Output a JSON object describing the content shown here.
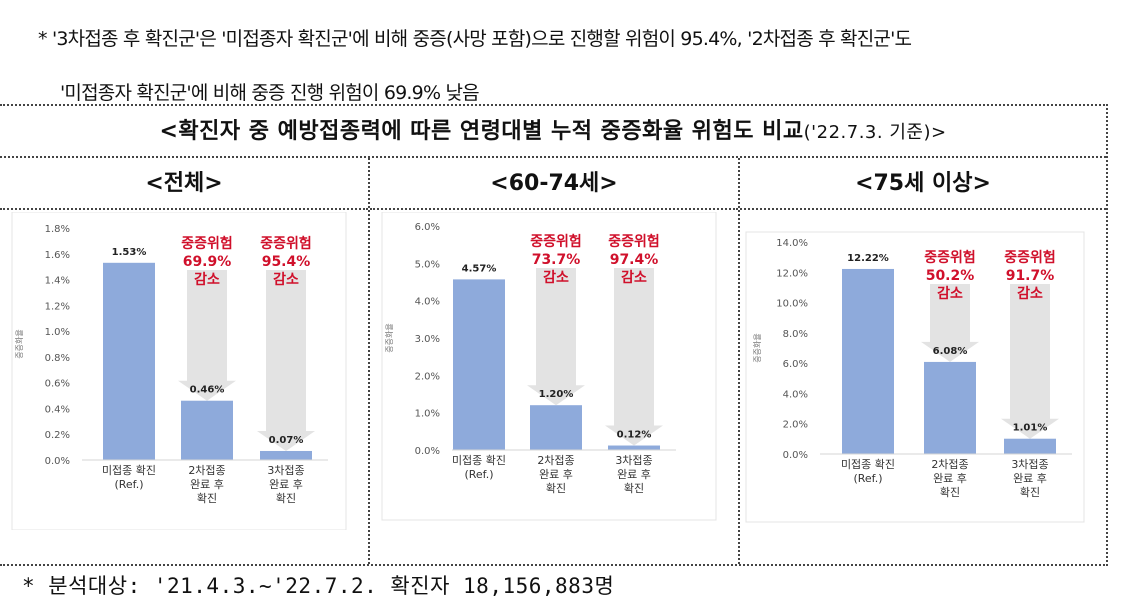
{
  "notes": {
    "top_line1": "* '3차접종 후 확진군'은 '미접종자 확진군'에 비해 중증(사망 포함)으로 진행할 위험이 95.4%, '2차접종 후 확진군'도",
    "top_line2": "'미접종자 확진군'에 비해 중증 진행 위험이 69.9% 낮음",
    "bottom": "* 분석대상: '21.4.3.~'22.7.2. 확진자 18,156,883명"
  },
  "figure": {
    "title": "<확진자 중 예방접종력에 따른 연령대별 누적 중증화율 위험도 비교",
    "title_sub": "('22.7.3. 기준)>"
  },
  "colors": {
    "bar": "#8eaadb",
    "arrow": "#e3e3e3",
    "risk_text": "#d0102b",
    "axis_text": "#555555"
  },
  "chart_data": [
    {
      "type": "bar",
      "panel_title": "<전체>",
      "ylabel": "중증화율",
      "categories": [
        "미접종 확진\n(Ref.)",
        "2차접종\n완료 후\n확진",
        "3차접종\n완료 후\n확진"
      ],
      "values": [
        1.53,
        0.46,
        0.07
      ],
      "value_labels": [
        "1.53%",
        "0.46%",
        "0.07%"
      ],
      "ylim": [
        0,
        1.8
      ],
      "yticks": [
        0,
        0.2,
        0.4,
        0.6,
        0.8,
        1.0,
        1.2,
        1.4,
        1.6,
        1.8
      ],
      "ytick_labels": [
        "0.0%",
        "0.2%",
        "0.4%",
        "0.6%",
        "0.8%",
        "1.0%",
        "1.2%",
        "1.4%",
        "1.6%",
        "1.8%"
      ],
      "annotations": [
        {
          "category_index": 1,
          "text": [
            "중증위험",
            "69.9%",
            "감소"
          ]
        },
        {
          "category_index": 2,
          "text": [
            "중증위험",
            "95.4%",
            "감소"
          ]
        }
      ]
    },
    {
      "type": "bar",
      "panel_title": "<60-74세>",
      "ylabel": "중증화율",
      "categories": [
        "미접종 확진\n(Ref.)",
        "2차접종\n완료 후\n확진",
        "3차접종\n완료 후\n확진"
      ],
      "values": [
        4.57,
        1.2,
        0.12
      ],
      "value_labels": [
        "4.57%",
        "1.20%",
        "0.12%"
      ],
      "ylim": [
        0,
        6.0
      ],
      "yticks": [
        0,
        1,
        2,
        3,
        4,
        5,
        6
      ],
      "ytick_labels": [
        "0.0%",
        "1.0%",
        "2.0%",
        "3.0%",
        "4.0%",
        "5.0%",
        "6.0%"
      ],
      "annotations": [
        {
          "category_index": 1,
          "text": [
            "중증위험",
            "73.7%",
            "감소"
          ]
        },
        {
          "category_index": 2,
          "text": [
            "중증위험",
            "97.4%",
            "감소"
          ]
        }
      ]
    },
    {
      "type": "bar",
      "panel_title": "<75세 이상>",
      "ylabel": "중증화율",
      "categories": [
        "미접종 확진\n(Ref.)",
        "2차접종\n완료 후\n확진",
        "3차접종\n완료 후\n확진"
      ],
      "values": [
        12.22,
        6.08,
        1.01
      ],
      "value_labels": [
        "12.22%",
        "6.08%",
        "1.01%"
      ],
      "ylim": [
        0,
        14.0
      ],
      "yticks": [
        0,
        2,
        4,
        6,
        8,
        10,
        12,
        14
      ],
      "ytick_labels": [
        "0.0%",
        "2.0%",
        "4.0%",
        "6.0%",
        "8.0%",
        "10.0%",
        "12.0%",
        "14.0%"
      ],
      "annotations": [
        {
          "category_index": 1,
          "text": [
            "중증위험",
            "50.2%",
            "감소"
          ]
        },
        {
          "category_index": 2,
          "text": [
            "중증위험",
            "91.7%",
            "감소"
          ]
        }
      ]
    }
  ]
}
